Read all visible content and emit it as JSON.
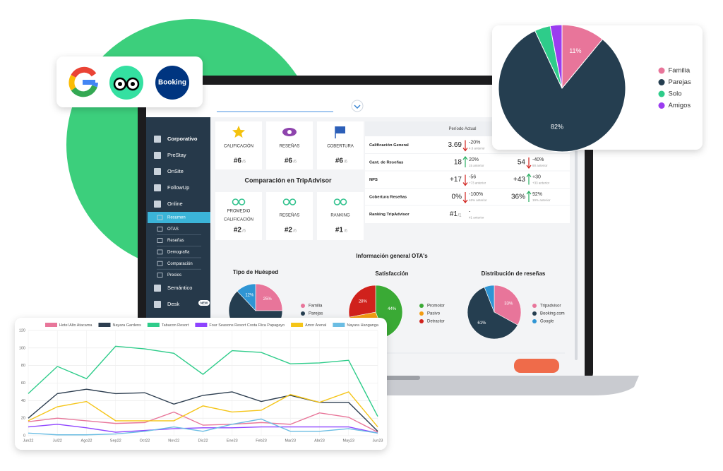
{
  "logos": {
    "booking": "Booking"
  },
  "dashboard": {
    "sidebar_items": [
      "Corporativo",
      "PreStay",
      "OnSite",
      "FollowUp",
      "Online"
    ],
    "sub_items": [
      "Resumen",
      "OTAS",
      "Reseñas",
      "Demografía",
      "Comparación",
      "Precios"
    ],
    "sidebar_items_2": [
      "Semántico",
      "Desk"
    ],
    "badge": "NEW",
    "rank_cards": [
      {
        "label": "CALIFICACIÓN",
        "rank": "#6",
        "of": "/6"
      },
      {
        "label": "RESEÑAS",
        "rank": "#6",
        "of": "/6"
      },
      {
        "label": "COBERTURA",
        "rank": "#6",
        "of": "/6"
      }
    ],
    "tripadvisor": {
      "title": "Comparación en TripAdvisor",
      "cards": [
        {
          "label": [
            "PROMEDIO",
            "CALIFICACIÓN"
          ],
          "rank": "#2",
          "of": "/6"
        },
        {
          "label": [
            "RESEÑAS"
          ],
          "rank": "#2",
          "of": "/6"
        },
        {
          "label": [
            "RANKING"
          ],
          "rank": "#1",
          "of": "/6"
        }
      ]
    },
    "table": {
      "header": "Período Actual",
      "rows": [
        {
          "label": "Calificación General",
          "cells": [
            {
              "value": "3.69",
              "dir": "down",
              "change": "-20%",
              "prev": "4.6 anterior"
            }
          ]
        },
        {
          "label": "Cant. de Reseñas",
          "cells": [
            {
              "value": "18",
              "dir": "up",
              "change": "20%",
              "prev": "15 anterior"
            },
            {
              "value": "54",
              "dir": "down",
              "change": "-40%",
              "prev": "90 anterior"
            }
          ]
        },
        {
          "label": "NPS",
          "cells": [
            {
              "value": "+17",
              "dir": "down",
              "change": "-56",
              "prev": "+73 anterior"
            },
            {
              "value": "+43",
              "dir": "up",
              "change": "+30",
              "prev": "+33 anterior"
            }
          ]
        },
        {
          "label": "Cobertura Reseñas",
          "cells": [
            {
              "value": "0%",
              "dir": "down",
              "change": "-100%",
              "prev": "46% anterior"
            },
            {
              "value": "36%",
              "dir": "up",
              "change": "92%",
              "prev": "19% anterior"
            }
          ]
        },
        {
          "label": "Ranking TripAdvisor",
          "cells": [
            {
              "value": "#1",
              "of": "/1",
              "dir": null,
              "change": "-",
              "prev": "#1 anterior"
            }
          ]
        }
      ]
    },
    "section_title": "Información general OTA's"
  },
  "chart_data": [
    {
      "type": "pie",
      "categories": [
        "Familia",
        "Parejas",
        "Solo",
        "Amigos"
      ],
      "values": [
        11,
        82,
        4,
        3
      ],
      "value_labels": [
        "11%",
        "82%",
        null,
        null
      ],
      "colors": [
        "#e8759a",
        "#253e50",
        "#2ecc8a",
        "#9b3cf0"
      ],
      "legend": "right"
    },
    {
      "type": "pie",
      "title": "Tipo de Huésped",
      "categories": [
        "Familia",
        "Parejas",
        null
      ],
      "values": [
        25,
        63,
        12
      ],
      "value_labels": [
        "25%",
        null,
        "12%"
      ],
      "colors": [
        "#e8759a",
        "#253e50",
        "#2f95d4"
      ],
      "legend": "right"
    },
    {
      "type": "pie",
      "title": "Satisfacción",
      "categories": [
        "Promotor",
        "Pasivo",
        "Detractor"
      ],
      "values": [
        44,
        28,
        28
      ],
      "value_labels": [
        "44%",
        null,
        "28%"
      ],
      "colors": [
        "#3aaa35",
        "#f39c12",
        "#d0211c"
      ],
      "legend": "right"
    },
    {
      "type": "pie",
      "title": "Distribución de reseñas",
      "categories": [
        "Tripadvisor",
        "Booking.com",
        "Google"
      ],
      "values": [
        33,
        61,
        6
      ],
      "value_labels": [
        "33%",
        "61%",
        null
      ],
      "colors": [
        "#e8759a",
        "#253e50",
        "#2f95d4"
      ],
      "legend": "right"
    },
    {
      "type": "line",
      "categories": [
        "Jun22",
        "Jul22",
        "Ago22",
        "Sep22",
        "Oct22",
        "Nov22",
        "Dic22",
        "Ene23",
        "Feb23",
        "Mar23",
        "Abr23",
        "May23",
        "Jun23"
      ],
      "series": [
        {
          "name": "Hotel Alto Atacama",
          "color": "#e8769a",
          "values": [
            16,
            20,
            17,
            14,
            15,
            27,
            12,
            13,
            15,
            13,
            26,
            21,
            4
          ]
        },
        {
          "name": "Nayara Gardens",
          "color": "#2d3e50",
          "values": [
            20,
            48,
            53,
            48,
            49,
            36,
            46,
            50,
            39,
            46,
            38,
            38,
            5
          ]
        },
        {
          "name": "Tabacon Resort",
          "color": "#2ecc8a",
          "values": [
            48,
            79,
            65,
            102,
            99,
            94,
            70,
            97,
            95,
            82,
            83,
            86,
            22
          ]
        },
        {
          "name": "Four Seasons Resort Costa Rica Papagayo",
          "color": "#8e44ff",
          "values": [
            10,
            13,
            9,
            4,
            6,
            8,
            9,
            9,
            10,
            10,
            10,
            10,
            3
          ]
        },
        {
          "name": "Amor Arenal",
          "color": "#f5c518",
          "values": [
            17,
            33,
            39,
            17,
            17,
            17,
            34,
            27,
            29,
            47,
            38,
            50,
            10
          ]
        },
        {
          "name": "Nayara Hanganga",
          "color": "#6bbde3",
          "values": [
            3,
            1,
            1,
            2,
            5,
            10,
            5,
            13,
            19,
            5,
            5,
            8,
            3
          ]
        }
      ],
      "ylim": [
        0,
        120
      ],
      "yticks": [
        0,
        20,
        40,
        60,
        80,
        100,
        120
      ],
      "grid": true,
      "legend": "top"
    }
  ]
}
